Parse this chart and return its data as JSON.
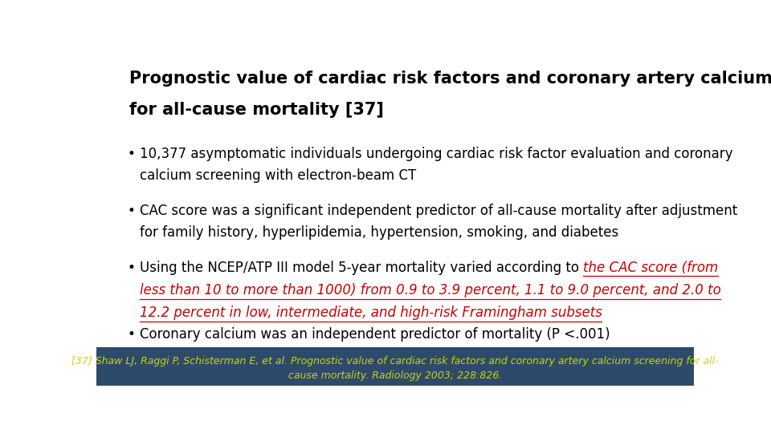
{
  "title_line1": "Prognostic value of cardiac risk factors and coronary artery calcium screening",
  "title_line2": "for all-cause mortality [37]",
  "title_fontsize": 15,
  "title_color": "#000000",
  "background_color": "#ffffff",
  "footer_bg_color": "#2e4a6b",
  "footer_text_color": "#c8d800",
  "footer_line1": "[37] Shaw LJ, Raggi P, Schisterman E, et al. Prognostic value of cardiac risk factors and coronary artery calcium screening for all-",
  "footer_line2": "cause mortality. Radiology 2003; 228:826.",
  "footer_fontsize": 9,
  "bullet_fontsize": 12,
  "bullet_color": "#000000",
  "red_color": "#cc0000",
  "b1_text": "10,377 asymptomatic individuals undergoing cardiac risk factor evaluation and coronary\ncalcium screening with electron-beam CT",
  "b2_text": "CAC score was a significant independent predictor of all-cause mortality after adjustment\nfor family history, hyperlipidemia, hypertension, smoking, and diabetes",
  "b3_prefix": "Using the NCEP/ATP III model 5-year mortality varied according to ",
  "b3_red_line1": "the CAC score (from",
  "b3_red_line2": "less than 10 to more than 1000) from 0.9 to 3.9 percent, 1.1 to 9.0 percent, and 2.0 to",
  "b3_red_line3": "12.2 percent in low, intermediate, and high-risk Framingham subsets",
  "b4_text": "Coronary calcium was an independent predictor of mortality (P <.001)"
}
